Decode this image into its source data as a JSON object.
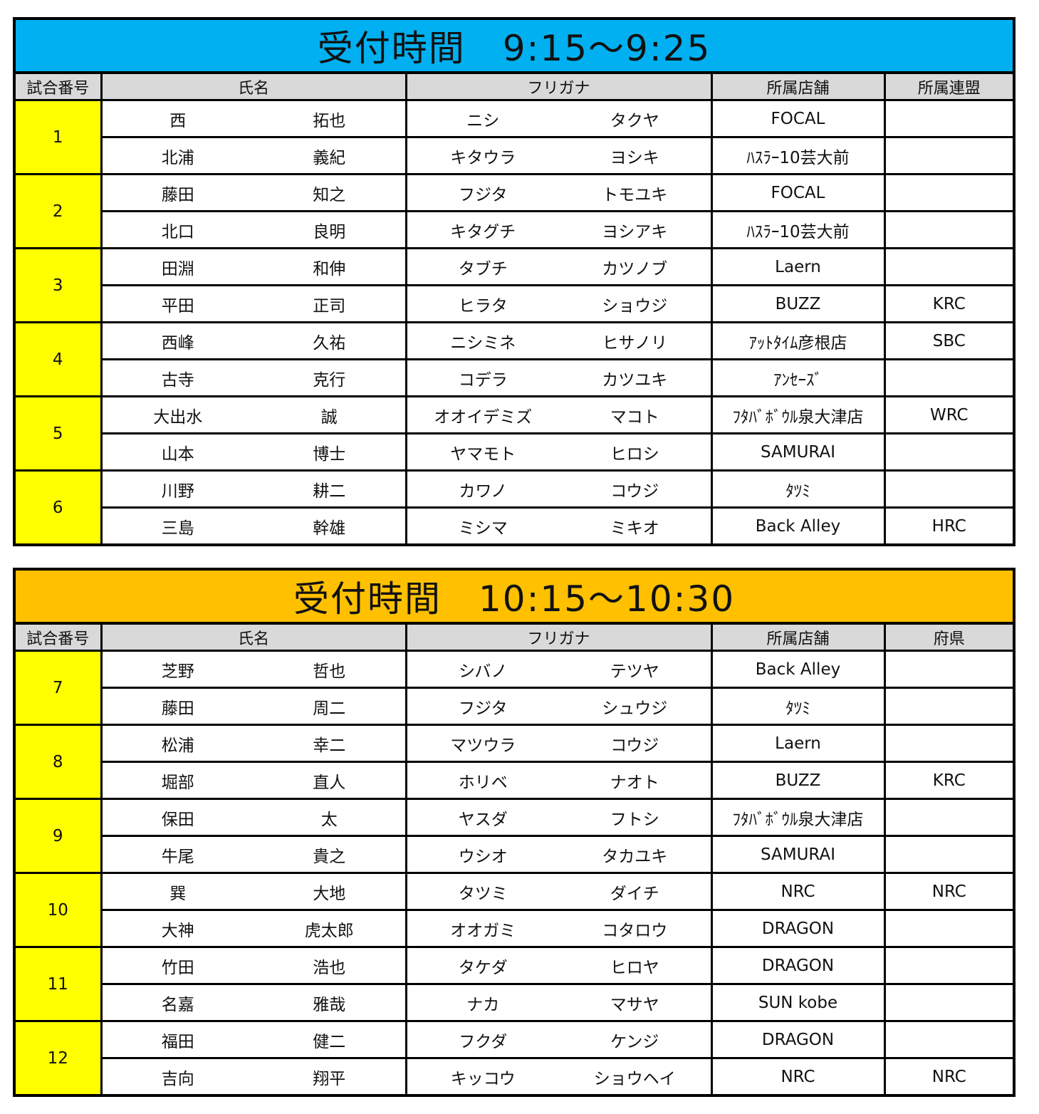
{
  "colors": {
    "session1_title": "#00b0f0",
    "session2_title": "#ffc000",
    "match_no": "#ffff00",
    "header": "#d9d9d9"
  },
  "sessions": [
    {
      "title": "受付時間　9:15～9:25",
      "headers": {
        "match": "試合番号",
        "name": "氏名",
        "kana": "フリガナ",
        "store": "所属店舗",
        "extra": "所属連盟"
      },
      "matches": [
        {
          "no": "1",
          "players": [
            {
              "last": "西",
              "first": "拓也",
              "last_kana": "ニシ",
              "first_kana": "タクヤ",
              "store": "FOCAL",
              "extra": ""
            },
            {
              "last": "北浦",
              "first": "義紀",
              "last_kana": "キタウラ",
              "first_kana": "ヨシキ",
              "store": "ﾊｽﾗｰ10芸大前",
              "extra": ""
            }
          ]
        },
        {
          "no": "2",
          "players": [
            {
              "last": "藤田",
              "first": "知之",
              "last_kana": "フジタ",
              "first_kana": "トモユキ",
              "store": "FOCAL",
              "extra": ""
            },
            {
              "last": "北口",
              "first": "良明",
              "last_kana": "キタグチ",
              "first_kana": "ヨシアキ",
              "store": "ﾊｽﾗｰ10芸大前",
              "extra": ""
            }
          ]
        },
        {
          "no": "3",
          "players": [
            {
              "last": "田淵",
              "first": "和伸",
              "last_kana": "タブチ",
              "first_kana": "カツノブ",
              "store": "Laern",
              "extra": ""
            },
            {
              "last": "平田",
              "first": "正司",
              "last_kana": "ヒラタ",
              "first_kana": "ショウジ",
              "store": "BUZZ",
              "extra": "KRC"
            }
          ]
        },
        {
          "no": "4",
          "players": [
            {
              "last": "西峰",
              "first": "久祐",
              "last_kana": "ニシミネ",
              "first_kana": "ヒサノリ",
              "store": "ｱｯﾄﾀｲﾑ彦根店",
              "extra": "SBC"
            },
            {
              "last": "古寺",
              "first": "克行",
              "last_kana": "コデラ",
              "first_kana": "カツユキ",
              "store": "ｱﾝｾｰｽﾞ",
              "extra": ""
            }
          ]
        },
        {
          "no": "5",
          "players": [
            {
              "last": "大出水",
              "first": "誠",
              "last_kana": "オオイデミズ",
              "first_kana": "マコト",
              "store": "ﾌﾀﾊﾞﾎﾞｳﾙ泉大津店",
              "extra": "WRC"
            },
            {
              "last": "山本",
              "first": "博士",
              "last_kana": "ヤマモト",
              "first_kana": "ヒロシ",
              "store": "SAMURAI",
              "extra": ""
            }
          ]
        },
        {
          "no": "6",
          "players": [
            {
              "last": "川野",
              "first": "耕二",
              "last_kana": "カワノ",
              "first_kana": "コウジ",
              "store": "ﾀﾂﾐ",
              "extra": ""
            },
            {
              "last": "三島",
              "first": "幹雄",
              "last_kana": "ミシマ",
              "first_kana": "ミキオ",
              "store": "Back Alley",
              "extra": "HRC"
            }
          ]
        }
      ]
    },
    {
      "title": "受付時間　10:15～10:30",
      "headers": {
        "match": "試合番号",
        "name": "氏名",
        "kana": "フリガナ",
        "store": "所属店舗",
        "extra": "府県"
      },
      "matches": [
        {
          "no": "7",
          "players": [
            {
              "last": "芝野",
              "first": "哲也",
              "last_kana": "シバノ",
              "first_kana": "テツヤ",
              "store": "Back Alley",
              "extra": ""
            },
            {
              "last": "藤田",
              "first": "周二",
              "last_kana": "フジタ",
              "first_kana": "シュウジ",
              "store": "ﾀﾂﾐ",
              "extra": ""
            }
          ]
        },
        {
          "no": "8",
          "players": [
            {
              "last": "松浦",
              "first": "幸二",
              "last_kana": "マツウラ",
              "first_kana": "コウジ",
              "store": "Laern",
              "extra": ""
            },
            {
              "last": "堀部",
              "first": "直人",
              "last_kana": "ホリベ",
              "first_kana": "ナオト",
              "store": "BUZZ",
              "extra": "KRC"
            }
          ]
        },
        {
          "no": "9",
          "players": [
            {
              "last": "保田",
              "first": "太",
              "last_kana": "ヤスダ",
              "first_kana": "フトシ",
              "store": "ﾌﾀﾊﾞﾎﾞｳﾙ泉大津店",
              "extra": ""
            },
            {
              "last": "牛尾",
              "first": "貴之",
              "last_kana": "ウシオ",
              "first_kana": "タカユキ",
              "store": "SAMURAI",
              "extra": ""
            }
          ]
        },
        {
          "no": "10",
          "players": [
            {
              "last": "巽",
              "first": "大地",
              "last_kana": "タツミ",
              "first_kana": "ダイチ",
              "store": "NRC",
              "extra": "NRC"
            },
            {
              "last": "大神",
              "first": "虎太郎",
              "last_kana": "オオガミ",
              "first_kana": "コタロウ",
              "store": "DRAGON",
              "extra": ""
            }
          ]
        },
        {
          "no": "11",
          "players": [
            {
              "last": "竹田",
              "first": "浩也",
              "last_kana": "タケダ",
              "first_kana": "ヒロヤ",
              "store": "DRAGON",
              "extra": ""
            },
            {
              "last": "名嘉",
              "first": "雅哉",
              "last_kana": "ナカ",
              "first_kana": "マサヤ",
              "store": "SUN kobe",
              "extra": ""
            }
          ]
        },
        {
          "no": "12",
          "players": [
            {
              "last": "福田",
              "first": "健二",
              "last_kana": "フクダ",
              "first_kana": "ケンジ",
              "store": "DRAGON",
              "extra": ""
            },
            {
              "last": "吉向",
              "first": "翔平",
              "last_kana": "キッコウ",
              "first_kana": "ショウヘイ",
              "store": "NRC",
              "extra": "NRC"
            }
          ]
        }
      ]
    }
  ]
}
